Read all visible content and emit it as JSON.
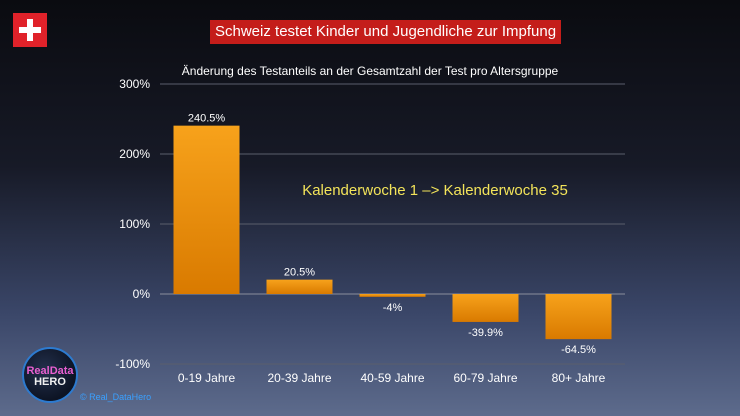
{
  "header": {
    "title": "Schweiz testet Kinder und Jugendliche zur Impfung",
    "subtitle": "Änderung des Testanteils an der Gesamtzahl der Test pro Altersgruppe",
    "flag_icon": "swiss-flag-icon"
  },
  "branding": {
    "logo_line1": "RealData",
    "logo_line2": "HERO",
    "credit": "© Real_DataHero"
  },
  "chart_data": {
    "type": "bar",
    "title": "Änderung des Testanteils an der Gesamtzahl der Test pro Altersgruppe",
    "categories": [
      "0-19 Jahre",
      "20-39 Jahre",
      "40-59 Jahre",
      "60-79 Jahre",
      "80+ Jahre"
    ],
    "values": [
      240.5,
      20.5,
      -4,
      -39.9,
      -64.5
    ],
    "value_labels": [
      "240.5%",
      "20.5%",
      "-4%",
      "-39.9%",
      "-64.5%"
    ],
    "ylim": [
      -100,
      300
    ],
    "yticks": [
      -100,
      0,
      100,
      200,
      300
    ],
    "ytick_labels": [
      "-100%",
      "0%",
      "100%",
      "200%",
      "300%"
    ],
    "annotation": "Kalenderwoche 1 –> Kalenderwoche 35",
    "grid": true,
    "bar_color": "#f0960a",
    "annotation_color": "#f3e45a"
  }
}
